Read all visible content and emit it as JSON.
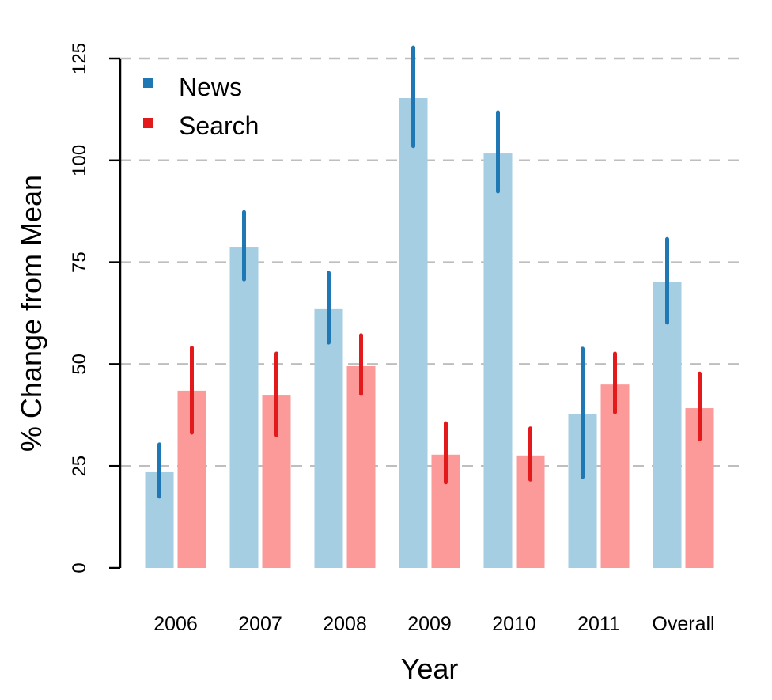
{
  "chart_data": {
    "type": "bar",
    "title": "",
    "xlabel": "Year",
    "ylabel": "% Change from Mean",
    "ylim": [
      0,
      125
    ],
    "yticks": [
      0,
      25,
      50,
      75,
      100,
      125
    ],
    "grid": true,
    "legend_placement": "top-left",
    "categories": [
      "2006",
      "2007",
      "2008",
      "2009",
      "2010",
      "2011",
      "Overall"
    ],
    "series": [
      {
        "name": "News",
        "bar_color": "#a6cee3",
        "error_color": "#1f78b4",
        "values": [
          23.5,
          78.8,
          63.5,
          115.3,
          101.7,
          37.7,
          70.1
        ],
        "error_low": [
          17.5,
          70.8,
          55.3,
          103.5,
          92.4,
          22.3,
          60.2
        ],
        "error_high": [
          30.3,
          87.3,
          72.4,
          127.7,
          111.8,
          53.8,
          80.7
        ]
      },
      {
        "name": "Search",
        "bar_color": "#fb9a99",
        "error_color": "#e31a1c",
        "values": [
          43.5,
          42.3,
          49.5,
          27.8,
          27.6,
          45.0,
          39.2
        ],
        "error_low": [
          33.2,
          32.6,
          42.7,
          21.0,
          21.7,
          38.2,
          31.6
        ],
        "error_high": [
          54.0,
          52.6,
          57.1,
          35.5,
          34.2,
          52.6,
          47.7
        ]
      }
    ]
  }
}
